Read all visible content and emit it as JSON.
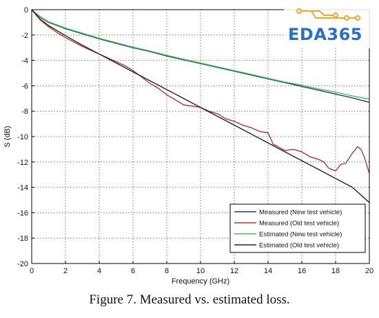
{
  "chart_data": {
    "type": "line",
    "title": "",
    "xlabel": "Frequency (GHz)",
    "ylabel": "S (dB)",
    "xlim": [
      0,
      20
    ],
    "ylim": [
      -20,
      0
    ],
    "x_ticks": [
      0,
      2,
      4,
      6,
      8,
      10,
      12,
      14,
      16,
      18,
      20
    ],
    "y_ticks": [
      0,
      -2,
      -4,
      -6,
      -8,
      -10,
      -12,
      -14,
      -16,
      -18,
      -20
    ],
    "grid": true,
    "legend_position": "bottom-right",
    "series": [
      {
        "name": "Measured (New test vehicle)",
        "color": "#2a2f9a",
        "x": [
          0,
          0.5,
          1,
          2,
          3,
          4,
          5,
          6,
          7,
          8,
          9,
          10,
          11,
          12,
          13,
          14,
          15,
          16,
          17,
          18,
          19,
          20
        ],
        "y": [
          0,
          -0.6,
          -1.0,
          -1.5,
          -1.9,
          -2.3,
          -2.65,
          -3.0,
          -3.3,
          -3.65,
          -3.95,
          -4.25,
          -4.55,
          -4.85,
          -5.15,
          -5.45,
          -5.75,
          -6.05,
          -6.35,
          -6.65,
          -6.95,
          -7.3
        ]
      },
      {
        "name": "Measured (Old test vehicle)",
        "color": "#b83232",
        "x": [
          0,
          0.5,
          1,
          1.5,
          2,
          3,
          4,
          5,
          5.5,
          6,
          6.5,
          7,
          7.5,
          8,
          8.5,
          9,
          9.5,
          10,
          10.5,
          11,
          11.5,
          12,
          12.5,
          13,
          13.5,
          14,
          14.3,
          14.6,
          15,
          15.5,
          16,
          16.5,
          17,
          17.3,
          17.6,
          18,
          18.3,
          18.6,
          19,
          19.3,
          19.5,
          19.7,
          20
        ],
        "y": [
          0,
          -0.8,
          -1.35,
          -1.8,
          -2.2,
          -2.9,
          -3.5,
          -4.1,
          -4.4,
          -4.8,
          -5.3,
          -5.8,
          -6.2,
          -6.7,
          -7.1,
          -7.5,
          -7.6,
          -7.7,
          -8.0,
          -8.2,
          -8.6,
          -8.8,
          -9.1,
          -9.3,
          -9.6,
          -9.7,
          -10.6,
          -10.8,
          -11.1,
          -11.0,
          -11.2,
          -11.6,
          -11.8,
          -12.0,
          -12.5,
          -12.7,
          -12.2,
          -12.1,
          -11.3,
          -10.8,
          -11.0,
          -11.6,
          -12.9
        ]
      },
      {
        "name": "Estimated (New test vehicle)",
        "color": "#3fc83f",
        "x": [
          0,
          0.5,
          1,
          2,
          3,
          4,
          5,
          6,
          7,
          8,
          9,
          10,
          11,
          12,
          13,
          14,
          15,
          16,
          17,
          18,
          19,
          20
        ],
        "y": [
          0,
          -0.55,
          -0.95,
          -1.45,
          -1.85,
          -2.25,
          -2.6,
          -2.95,
          -3.25,
          -3.6,
          -3.9,
          -4.2,
          -4.5,
          -4.8,
          -5.1,
          -5.4,
          -5.7,
          -5.95,
          -6.25,
          -6.5,
          -6.8,
          -7.05
        ]
      },
      {
        "name": "Estimated (Old test vehicle)",
        "color": "#222222",
        "x": [
          0,
          0.5,
          1,
          2,
          3,
          4,
          5,
          6,
          7,
          8,
          9,
          10,
          11,
          12,
          13,
          14,
          15,
          16,
          17,
          18,
          19,
          20
        ],
        "y": [
          0,
          -0.75,
          -1.25,
          -2.05,
          -2.8,
          -3.5,
          -4.2,
          -4.9,
          -5.6,
          -6.3,
          -7.0,
          -7.7,
          -8.4,
          -9.1,
          -9.8,
          -10.5,
          -11.2,
          -11.9,
          -12.6,
          -13.3,
          -14.0,
          -15.2
        ]
      }
    ]
  },
  "caption": "Figure 7. Measured vs. estimated loss.",
  "logo": {
    "text": "EDA365",
    "colors": {
      "text": "#2b6fc7",
      "circuit": "#f5a623"
    }
  }
}
